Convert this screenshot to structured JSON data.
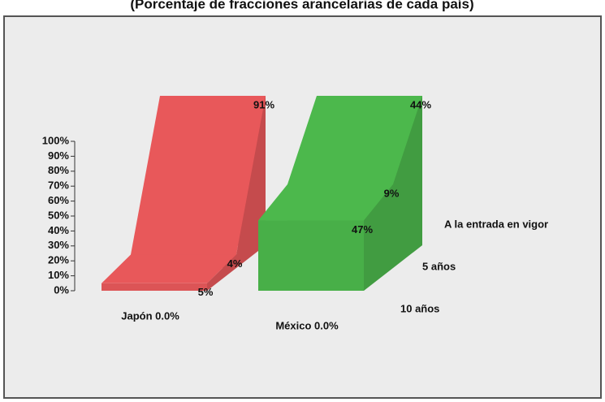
{
  "chart_data": {
    "type": "area3d",
    "title": "(Porcentaje de fracciones arancelarias de cada país)",
    "categories": [
      "Japón 0.0%",
      "México 0.0%"
    ],
    "colors": [
      "#e8585a",
      "#4cb84c"
    ],
    "series": [
      {
        "name": "A la entrada en vigor",
        "values": [
          91,
          44
        ],
        "value_labels": [
          "91%",
          "44%"
        ]
      },
      {
        "name": "5 años",
        "values": [
          4,
          9
        ],
        "value_labels": [
          "4%",
          "9%"
        ]
      },
      {
        "name": "10 años",
        "values": [
          5,
          47
        ],
        "value_labels": [
          "5%",
          "47%"
        ]
      }
    ],
    "stacked": true,
    "ylim": [
      0,
      100
    ],
    "yticks": [
      {
        "value": 0,
        "label": "0%"
      },
      {
        "value": 10,
        "label": "10%"
      },
      {
        "value": 20,
        "label": "20%"
      },
      {
        "value": 30,
        "label": "30%"
      },
      {
        "value": 40,
        "label": "40%"
      },
      {
        "value": 50,
        "label": "50%"
      },
      {
        "value": 60,
        "label": "60%"
      },
      {
        "value": 70,
        "label": "70%"
      },
      {
        "value": 80,
        "label": "80%"
      },
      {
        "value": 90,
        "label": "90%"
      },
      {
        "value": 100,
        "label": "100%"
      }
    ]
  }
}
